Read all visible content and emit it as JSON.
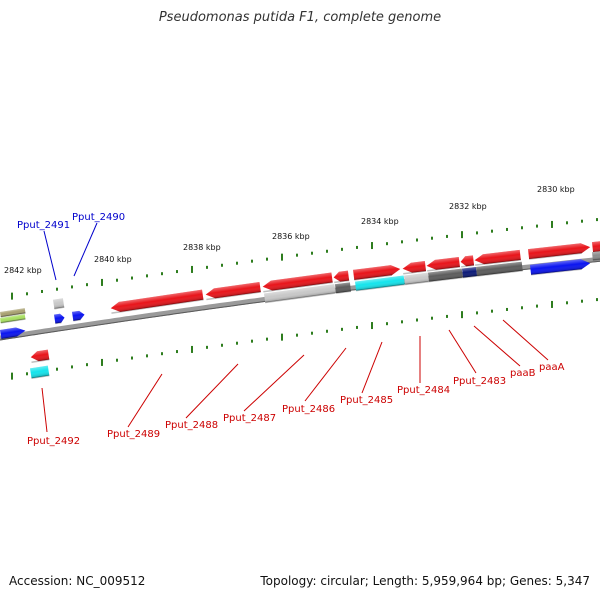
{
  "title": "Pseudomonas putida F1, complete genome",
  "footer": {
    "accession": "Accession: NC_009512",
    "summary": "Topology: circular; Length: 5,959,964 bp; Genes: 5,347"
  },
  "colors": {
    "backbone": "#808080",
    "tick": "#2e7d1e",
    "label_forward": "#0000cc",
    "label_reverse": "#cc0000",
    "gene_red": "#e8141a",
    "gene_blue": "#0a14f0",
    "gene_gray": "#8c8c8c",
    "gene_lightgray": "#c8c8c8",
    "gene_darkgray": "#5c5c5c",
    "gene_cyan": "#14e4ec",
    "gene_navy": "#0c1a78",
    "gene_olive": "#a8a070",
    "gene_green": "#a8e060"
  },
  "scale_labels": [
    "2830 kbp",
    "2832 kbp",
    "2834 kbp",
    "2836 kbp",
    "2838 kbp",
    "2840 kbp",
    "2842 kbp"
  ],
  "gene_labels": {
    "forward": [
      "Pput_2491",
      "Pput_2490"
    ],
    "reverse": [
      "Pput_2492",
      "Pput_2489",
      "Pput_2488",
      "Pput_2487",
      "Pput_2486",
      "Pput_2485",
      "Pput_2484",
      "Pput_2483",
      "paaB",
      "paaA"
    ]
  }
}
